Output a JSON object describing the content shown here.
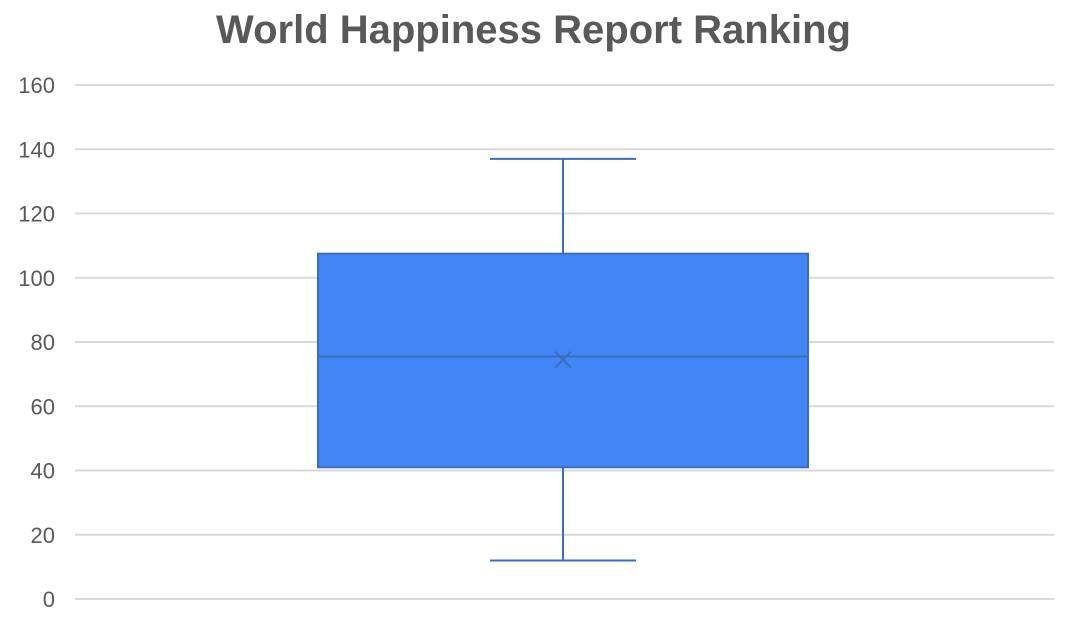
{
  "chart_data": {
    "type": "box",
    "title": "World Happiness Report Ranking",
    "xlabel": "",
    "ylabel": "",
    "ylim": [
      0,
      160
    ],
    "yticks": [
      0,
      20,
      40,
      60,
      80,
      100,
      120,
      140,
      160
    ],
    "grid": true,
    "legend": "none",
    "box": {
      "min": 12,
      "q1": 41,
      "median": 75.5,
      "mean": 74.5,
      "q3": 107.5,
      "max": 137
    },
    "colors": {
      "box_fill": "#4285f4",
      "box_stroke": "#3a6ebf",
      "grid": "#d9d9d9",
      "text": "#595959"
    }
  }
}
